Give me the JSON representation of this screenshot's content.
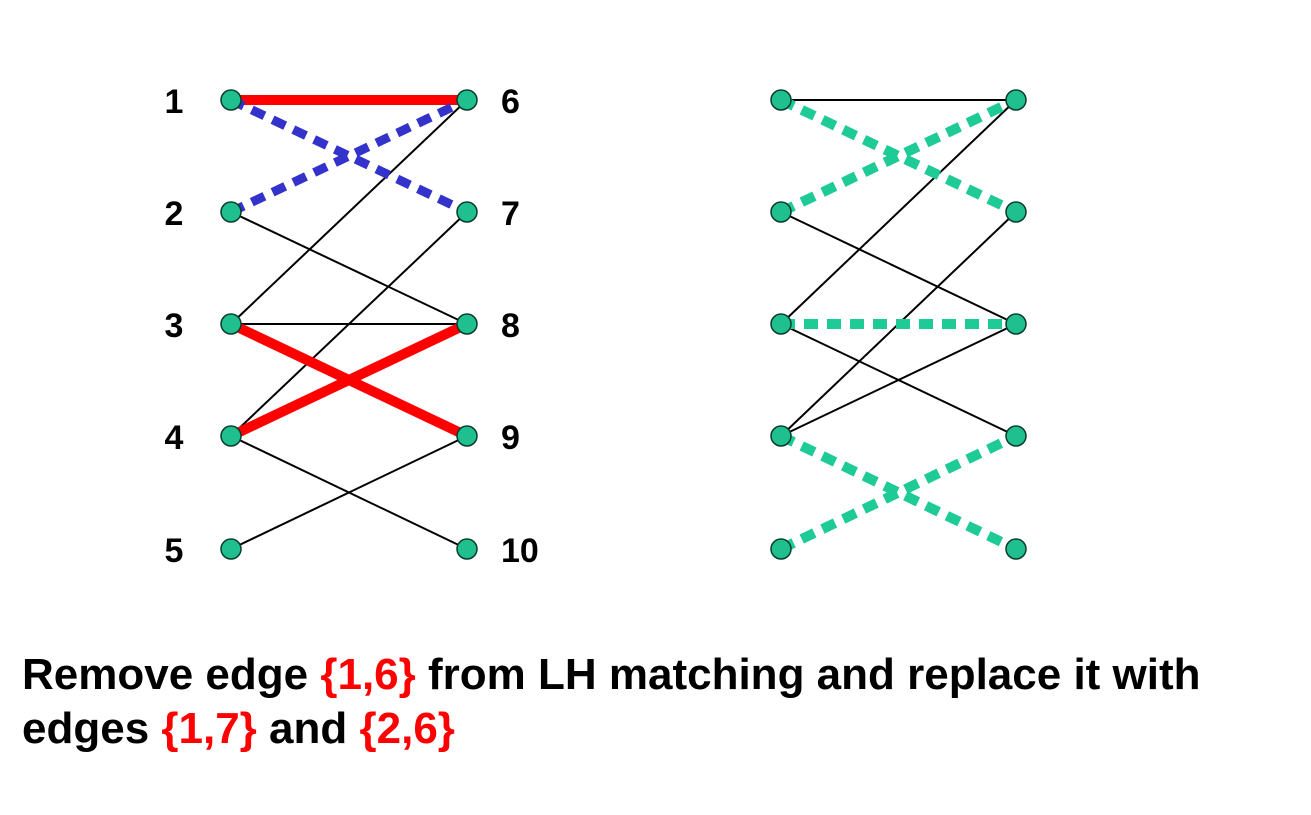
{
  "colors": {
    "node_fill": "#1fbf8f",
    "node_stroke": "#0a3d2c",
    "edge": "#000000",
    "matching": "#ff0000",
    "alternating_path": "#3333cc",
    "new_matching": "#1ecb97",
    "caption_highlight": "#ff0000"
  },
  "left_graph": {
    "labels": {
      "left": [
        "1",
        "2",
        "3",
        "4",
        "5"
      ],
      "right": [
        "6",
        "7",
        "8",
        "9",
        "10"
      ]
    },
    "edges": [
      {
        "from": 1,
        "to": 6,
        "kind": "matching"
      },
      {
        "from": 1,
        "to": 7,
        "kind": "path"
      },
      {
        "from": 2,
        "to": 6,
        "kind": "path"
      },
      {
        "from": 2,
        "to": 8,
        "kind": "plain"
      },
      {
        "from": 3,
        "to": 6,
        "kind": "plain"
      },
      {
        "from": 3,
        "to": 8,
        "kind": "plain"
      },
      {
        "from": 3,
        "to": 9,
        "kind": "matching"
      },
      {
        "from": 4,
        "to": 7,
        "kind": "plain"
      },
      {
        "from": 4,
        "to": 8,
        "kind": "matching"
      },
      {
        "from": 4,
        "to": 10,
        "kind": "plain"
      },
      {
        "from": 5,
        "to": 9,
        "kind": "plain"
      }
    ]
  },
  "right_graph": {
    "edges": [
      {
        "from": 1,
        "to": 6,
        "kind": "plain"
      },
      {
        "from": 1,
        "to": 7,
        "kind": "matching"
      },
      {
        "from": 2,
        "to": 6,
        "kind": "matching"
      },
      {
        "from": 2,
        "to": 8,
        "kind": "plain"
      },
      {
        "from": 3,
        "to": 6,
        "kind": "plain"
      },
      {
        "from": 3,
        "to": 8,
        "kind": "matching"
      },
      {
        "from": 3,
        "to": 9,
        "kind": "plain"
      },
      {
        "from": 4,
        "to": 7,
        "kind": "plain"
      },
      {
        "from": 4,
        "to": 8,
        "kind": "plain"
      },
      {
        "from": 4,
        "to": 10,
        "kind": "matching"
      },
      {
        "from": 5,
        "to": 9,
        "kind": "matching"
      }
    ]
  },
  "caption": {
    "t1": "Remove edge ",
    "h1": "{1,6}",
    "t2": " from LH matching and replace it with edges ",
    "h2": "{1,7}",
    "t3": " and ",
    "h3": "{2,6}"
  }
}
